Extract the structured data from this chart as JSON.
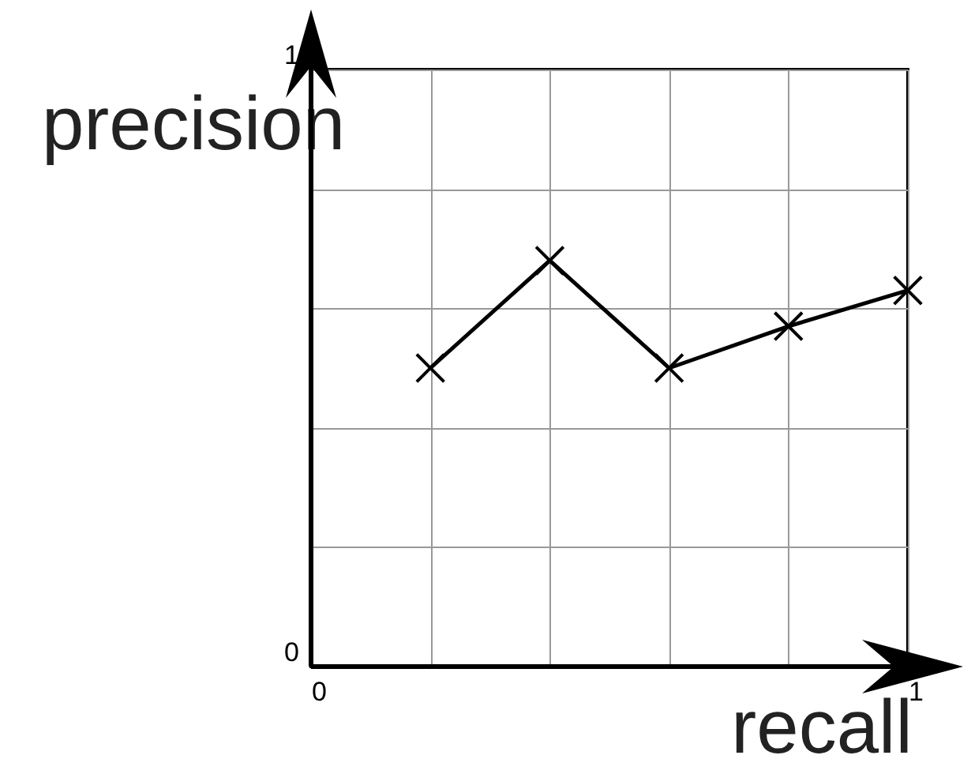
{
  "chart_data": {
    "type": "line",
    "xlabel": "recall",
    "ylabel": "precision",
    "x": [
      0.2,
      0.4,
      0.6,
      0.8,
      1
    ],
    "values": [
      0.5,
      0.68,
      0.5,
      0.57,
      0.63
    ],
    "color": "#000000",
    "xlim": [
      0,
      1
    ],
    "ylim": [
      0,
      1
    ],
    "xticks": [
      0,
      {
        "value": 0.2,
        "label": null
      },
      {
        "value": 0.4,
        "label": null
      },
      {
        "value": 0.6,
        "label": null
      },
      {
        "value": 0.8,
        "label": null
      },
      1
    ],
    "yticks": [
      0,
      {
        "value": 0.2,
        "label": null
      },
      {
        "value": 0.4,
        "label": null
      },
      {
        "value": 0.6,
        "label": null
      },
      {
        "value": 0.8,
        "label": null
      },
      1
    ],
    "grid": true,
    "marker": "cross",
    "line_style": "solid"
  }
}
